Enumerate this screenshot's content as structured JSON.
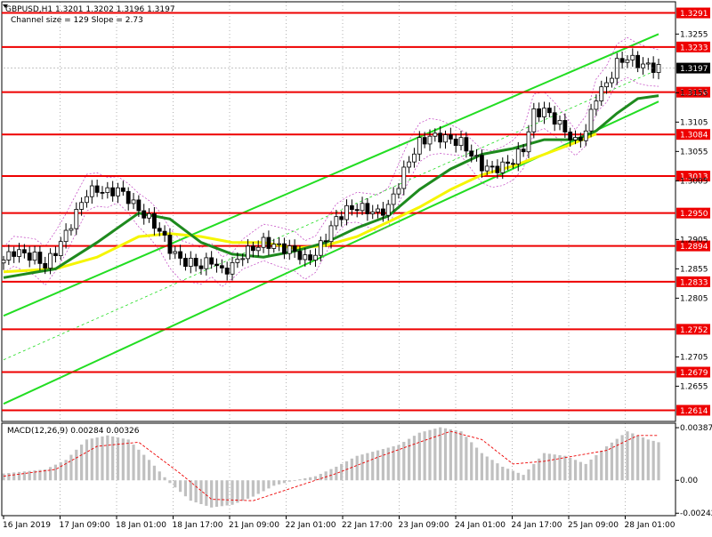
{
  "header": {
    "line1": "GBPUSD,H1  1.3201 1.3202 1.3196 1.3197",
    "line2": "Channel size = 129 Slope = 2.73"
  },
  "colors": {
    "level_line": "#ee0000",
    "channel": "#22dd22",
    "ma_fast": "#1e8a1e",
    "ma_slow": "#f5f500",
    "candle": "#000000",
    "macd_hist": "#c0c0c0",
    "macd_signal": "#ee0000",
    "bollinger": "#c040c0",
    "grid": "#000000",
    "current_price_bg": "#000000"
  },
  "chart_data": [
    {
      "type": "candlestick",
      "instrument": "GBPUSD",
      "timeframe": "H1",
      "price_ticks": [
        "1.3255",
        "1.3155",
        "1.3105",
        "1.3055",
        "1.3005",
        "1.2905",
        "1.2855",
        "1.2805",
        "1.2705",
        "1.2655"
      ],
      "ylim": [
        1.2595,
        1.331
      ],
      "levels": [
        {
          "label": "1.3291",
          "value": 1.3291
        },
        {
          "label": "1.3233",
          "value": 1.3233
        },
        {
          "label": "1.3156",
          "value": 1.3156
        },
        {
          "label": "1.3084",
          "value": 1.3084
        },
        {
          "label": "1.3013",
          "value": 1.3013
        },
        {
          "label": "1.2950",
          "value": 1.295
        },
        {
          "label": "1.2894",
          "value": 1.2894
        },
        {
          "label": "1.2833",
          "value": 1.2833
        },
        {
          "label": "1.2752",
          "value": 1.2752
        },
        {
          "label": "1.2679",
          "value": 1.2679
        },
        {
          "label": "1.2614",
          "value": 1.2614
        }
      ],
      "current_price": {
        "label": "1.3197",
        "value": 1.3197
      },
      "x_labels": [
        "16 Jan 2019",
        "17 Jan 09:00",
        "18 Jan 01:00",
        "18 Jan 17:00",
        "21 Jan 09:00",
        "22 Jan 01:00",
        "22 Jan 17:00",
        "23 Jan 09:00",
        "24 Jan 01:00",
        "24 Jan 17:00",
        "25 Jan 09:00",
        "28 Jan 01:00"
      ],
      "close_path": [
        [
          0,
          1.287
        ],
        [
          2,
          1.2885
        ],
        [
          4,
          1.288
        ],
        [
          6,
          1.2875
        ],
        [
          8,
          1.286
        ],
        [
          10,
          1.2885
        ],
        [
          12,
          1.2915
        ],
        [
          14,
          1.295
        ],
        [
          16,
          1.2985
        ],
        [
          18,
          1.299
        ],
        [
          20,
          1.2985
        ],
        [
          22,
          1.299
        ],
        [
          24,
          1.2975
        ],
        [
          26,
          1.2955
        ],
        [
          28,
          1.294
        ],
        [
          30,
          1.292
        ],
        [
          32,
          1.289
        ],
        [
          34,
          1.287
        ],
        [
          36,
          1.2865
        ],
        [
          38,
          1.286
        ],
        [
          40,
          1.287
        ],
        [
          42,
          1.285
        ],
        [
          44,
          1.286
        ],
        [
          46,
          1.288
        ],
        [
          48,
          1.289
        ],
        [
          50,
          1.29
        ],
        [
          52,
          1.2895
        ],
        [
          54,
          1.289
        ],
        [
          56,
          1.2885
        ],
        [
          58,
          1.287
        ],
        [
          60,
          1.288
        ],
        [
          62,
          1.291
        ],
        [
          64,
          1.294
        ],
        [
          66,
          1.2955
        ],
        [
          68,
          1.296
        ],
        [
          70,
          1.2955
        ],
        [
          72,
          1.295
        ],
        [
          74,
          1.296
        ],
        [
          76,
          1.3
        ],
        [
          78,
          1.304
        ],
        [
          80,
          1.307
        ],
        [
          82,
          1.308
        ],
        [
          84,
          1.308
        ],
        [
          86,
          1.3075
        ],
        [
          88,
          1.307
        ],
        [
          90,
          1.305
        ],
        [
          92,
          1.303
        ],
        [
          94,
          1.3025
        ],
        [
          96,
          1.303
        ],
        [
          98,
          1.304
        ],
        [
          100,
          1.306
        ],
        [
          102,
          1.312
        ],
        [
          104,
          1.3125
        ],
        [
          106,
          1.311
        ],
        [
          108,
          1.309
        ],
        [
          110,
          1.307
        ],
        [
          112,
          1.309
        ],
        [
          114,
          1.315
        ],
        [
          116,
          1.317
        ],
        [
          118,
          1.3205
        ],
        [
          120,
          1.3215
        ],
        [
          122,
          1.3205
        ],
        [
          124,
          1.32
        ],
        [
          126,
          1.3197
        ]
      ],
      "ma_fast": [
        [
          0,
          1.284
        ],
        [
          10,
          1.2855
        ],
        [
          18,
          1.29
        ],
        [
          26,
          1.295
        ],
        [
          32,
          1.294
        ],
        [
          38,
          1.29
        ],
        [
          44,
          1.288
        ],
        [
          50,
          1.2875
        ],
        [
          56,
          1.2885
        ],
        [
          62,
          1.29
        ],
        [
          68,
          1.2925
        ],
        [
          74,
          1.2945
        ],
        [
          80,
          1.299
        ],
        [
          86,
          1.3025
        ],
        [
          92,
          1.305
        ],
        [
          98,
          1.306
        ],
        [
          104,
          1.3075
        ],
        [
          110,
          1.3075
        ],
        [
          114,
          1.309
        ],
        [
          118,
          1.312
        ],
        [
          122,
          1.3145
        ],
        [
          126,
          1.315
        ]
      ],
      "ma_slow": [
        [
          0,
          1.285
        ],
        [
          10,
          1.2855
        ],
        [
          18,
          1.2875
        ],
        [
          26,
          1.291
        ],
        [
          32,
          1.2915
        ],
        [
          38,
          1.291
        ],
        [
          44,
          1.29
        ],
        [
          50,
          1.29
        ],
        [
          56,
          1.289
        ],
        [
          62,
          1.2895
        ],
        [
          68,
          1.291
        ],
        [
          74,
          1.2935
        ],
        [
          80,
          1.296
        ],
        [
          86,
          1.299
        ],
        [
          92,
          1.3015
        ],
        [
          98,
          1.303
        ],
        [
          104,
          1.305
        ],
        [
          110,
          1.307
        ],
        [
          114,
          1.3085
        ]
      ],
      "channel_lower": [
        [
          0,
          1.2625
        ],
        [
          126,
          1.314
        ]
      ],
      "channel_upper": [
        [
          0,
          1.2775
        ],
        [
          126,
          1.3255
        ]
      ],
      "channel_mid": [
        [
          0,
          1.27
        ],
        [
          126,
          1.3195
        ]
      ]
    },
    {
      "type": "histogram",
      "title": "MACD(12,26,9) 0.00284 0.00326",
      "ticks": [
        {
          "label": "0.00387",
          "value": 0.00387
        },
        {
          "label": "0.00",
          "value": 0.0
        },
        {
          "label": "-0.00242",
          "value": -0.00242
        }
      ],
      "ylim": [
        -0.0026,
        0.0042
      ],
      "hist_path": [
        [
          0,
          0.0005
        ],
        [
          8,
          0.0008
        ],
        [
          12,
          0.0015
        ],
        [
          16,
          0.003
        ],
        [
          20,
          0.0033
        ],
        [
          24,
          0.003
        ],
        [
          28,
          0.0015
        ],
        [
          32,
          -0.0002
        ],
        [
          36,
          -0.0015
        ],
        [
          40,
          -0.002
        ],
        [
          44,
          -0.0018
        ],
        [
          48,
          -0.0012
        ],
        [
          52,
          -0.0004
        ],
        [
          56,
          0.0
        ],
        [
          60,
          0.0003
        ],
        [
          64,
          0.001
        ],
        [
          68,
          0.0018
        ],
        [
          72,
          0.0022
        ],
        [
          76,
          0.0026
        ],
        [
          80,
          0.0035
        ],
        [
          84,
          0.0039
        ],
        [
          88,
          0.0036
        ],
        [
          92,
          0.002
        ],
        [
          96,
          0.001
        ],
        [
          100,
          0.0004
        ],
        [
          104,
          0.002
        ],
        [
          108,
          0.0018
        ],
        [
          112,
          0.0012
        ],
        [
          116,
          0.0025
        ],
        [
          120,
          0.0036
        ],
        [
          124,
          0.003
        ],
        [
          126,
          0.0028
        ]
      ],
      "signal_path": [
        [
          0,
          0.0003
        ],
        [
          10,
          0.0008
        ],
        [
          18,
          0.0025
        ],
        [
          26,
          0.0028
        ],
        [
          34,
          0.0005
        ],
        [
          40,
          -0.0014
        ],
        [
          48,
          -0.0015
        ],
        [
          56,
          -0.0005
        ],
        [
          64,
          0.0005
        ],
        [
          72,
          0.0017
        ],
        [
          80,
          0.0028
        ],
        [
          86,
          0.0036
        ],
        [
          92,
          0.003
        ],
        [
          98,
          0.0012
        ],
        [
          104,
          0.0014
        ],
        [
          110,
          0.0018
        ],
        [
          116,
          0.0022
        ],
        [
          122,
          0.0033
        ],
        [
          126,
          0.0033
        ]
      ]
    }
  ]
}
